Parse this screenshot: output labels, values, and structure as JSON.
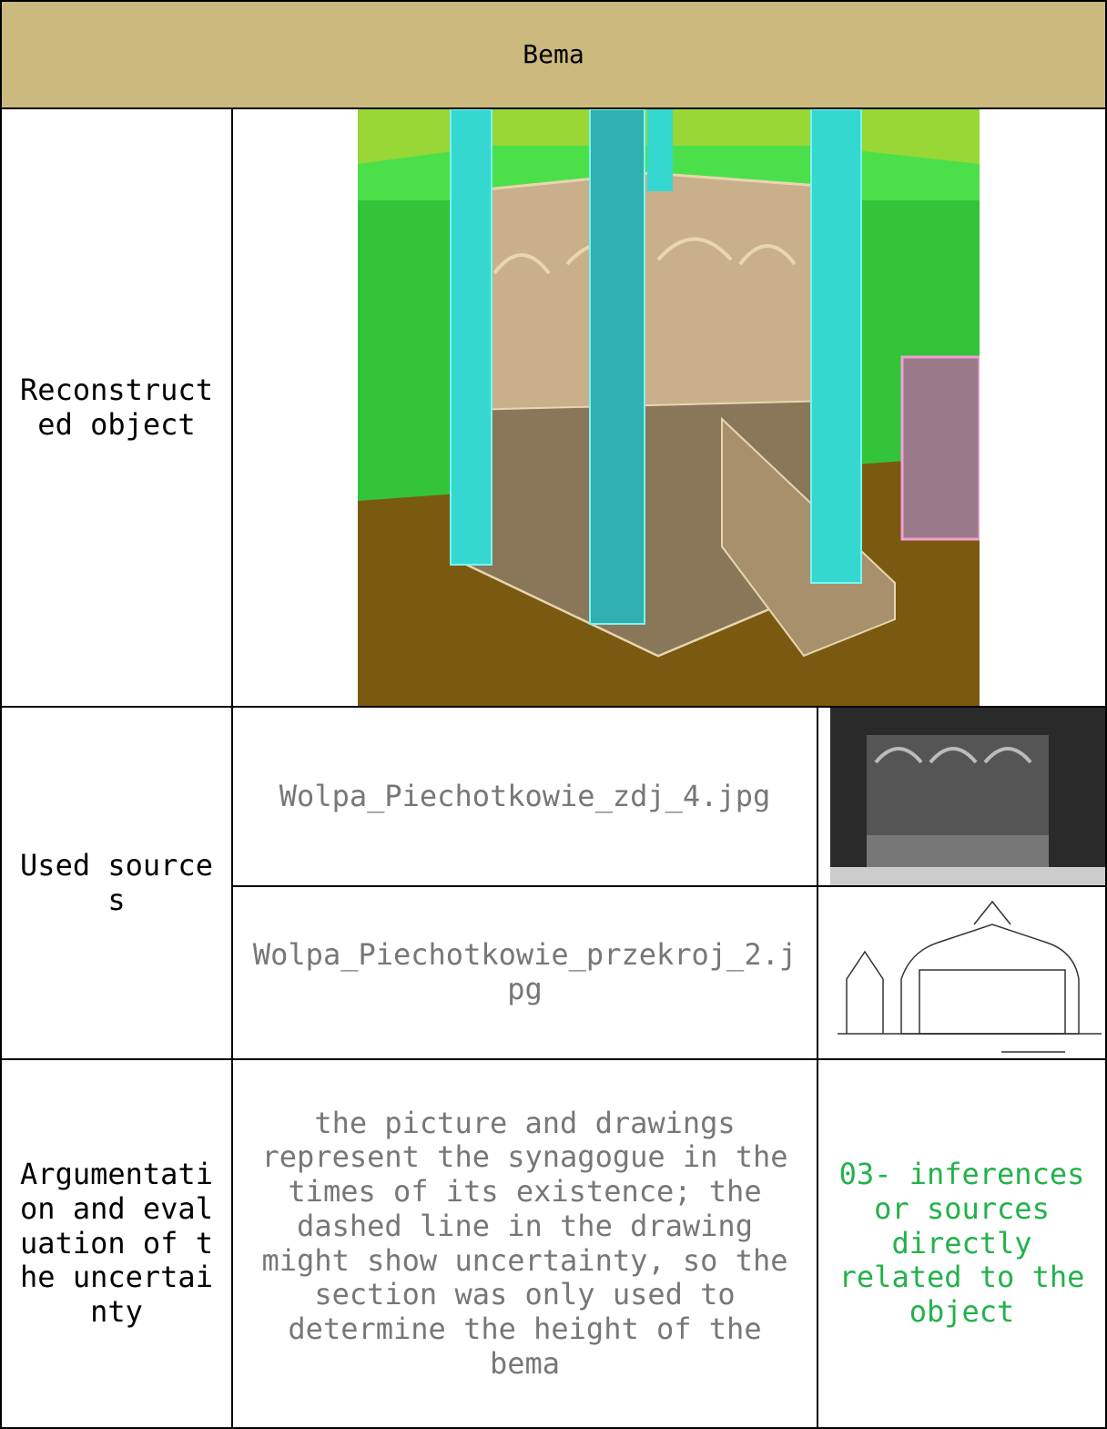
{
  "header": {
    "title": "Bema"
  },
  "table": {
    "reconstructed": {
      "label": "Reconstructed object"
    },
    "sources": {
      "label": "Used sources",
      "items": [
        {
          "file": "Wolpa_Piechotkowie_zdj_4.jpg"
        },
        {
          "file": "Wolpa_Piechotkowie_przekroj_2.jpg"
        }
      ]
    },
    "argumentation": {
      "label": "Argumentation and evaluation of the uncertainty",
      "text": "the picture and drawings represent the synagogue in the times of its existence; the dashed line in the drawing might show uncertainty, so the section was only used to determine the height of the bema",
      "level": "03- inferences or sources directly related to the object"
    }
  }
}
